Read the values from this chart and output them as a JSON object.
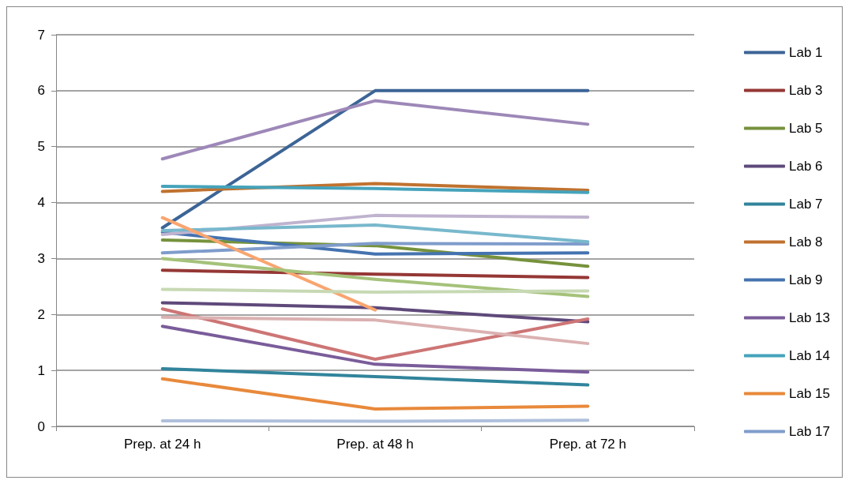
{
  "chart_data": {
    "type": "line",
    "categories": [
      "Prep. at 24 h",
      "Prep. at 48 h",
      "Prep. at 72 h"
    ],
    "ylim": [
      0,
      7
    ],
    "yticks": [
      0,
      1,
      2,
      3,
      4,
      5,
      6,
      7
    ],
    "grid": "y",
    "legend": "right",
    "marker": "none",
    "line_style": "solid",
    "series": [
      {
        "name": "Lab 1",
        "color": "#3c6496",
        "values": [
          3.55,
          6.0,
          6.0
        ]
      },
      {
        "name": "Lab 3",
        "color": "#953735",
        "values": [
          2.79,
          2.72,
          2.66
        ]
      },
      {
        "name": "Lab 5",
        "color": "#76923c",
        "values": [
          3.33,
          3.23,
          2.86
        ]
      },
      {
        "name": "Lab 6",
        "color": "#5f497a",
        "values": [
          2.21,
          2.12,
          1.87
        ]
      },
      {
        "name": "Lab 7",
        "color": "#31849b",
        "values": [
          1.03,
          0.89,
          0.74
        ]
      },
      {
        "name": "Lab 8",
        "color": "#c0722f",
        "values": [
          4.2,
          4.34,
          4.22
        ]
      },
      {
        "name": "Lab 9",
        "color": "#4573b0",
        "values": [
          3.47,
          3.08,
          3.1
        ]
      },
      {
        "name": "Lab 13",
        "color": "#7a5c9a",
        "values": [
          1.79,
          1.11,
          0.97
        ]
      },
      {
        "name": "Lab 14",
        "color": "#45a3bb",
        "values": [
          4.29,
          4.25,
          4.18
        ]
      },
      {
        "name": "Lab 15",
        "color": "#e8893b",
        "values": [
          0.85,
          0.31,
          0.36
        ]
      },
      {
        "name": "Lab 17",
        "color": "#7f9ccb",
        "values": [
          3.1,
          3.27,
          3.26
        ]
      },
      {
        "color": "#9d88b8",
        "values": [
          4.78,
          5.82,
          5.4
        ]
      },
      {
        "color": "#bfb3cf",
        "values": [
          3.43,
          3.77,
          3.74
        ]
      },
      {
        "color": "#78b8cc",
        "values": [
          3.5,
          3.6,
          3.3
        ]
      },
      {
        "color": "#f9a56f",
        "values": [
          3.73,
          2.08,
          null
        ]
      },
      {
        "color": "#a5c27a",
        "values": [
          3.0,
          2.63,
          2.32
        ]
      },
      {
        "color": "#c7d9b4",
        "values": [
          2.45,
          2.4,
          2.42
        ]
      },
      {
        "color": "#cd7575",
        "values": [
          2.1,
          1.2,
          1.92
        ]
      },
      {
        "color": "#dbb1b1",
        "values": [
          1.95,
          1.9,
          1.48
        ]
      },
      {
        "color": "#afc0dc",
        "values": [
          0.1,
          0.09,
          0.11
        ]
      }
    ]
  }
}
